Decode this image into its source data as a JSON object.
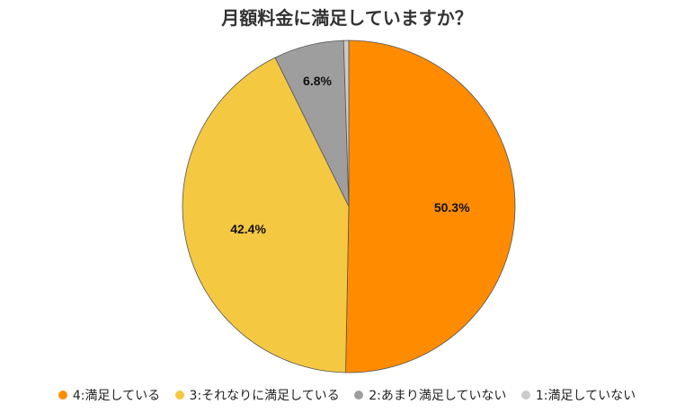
{
  "chart_data": {
    "type": "pie",
    "title": "月額料金に満足していますか？",
    "categories": [
      "4:満足している",
      "3:それなりに満足している",
      "2:あまり満足していない",
      "1:満足していない"
    ],
    "values": [
      50.3,
      42.4,
      6.8,
      0.5
    ],
    "data_labels": [
      "50.3%",
      "42.4%",
      "6.8%",
      ""
    ],
    "colors": [
      "#ff8c00",
      "#f5c842",
      "#9e9e9e",
      "#cccccc"
    ],
    "legend_position": "bottom",
    "start_angle": "12 o'clock, clockwise"
  },
  "legend": [
    {
      "label": "4:満足している",
      "color": "#ff8c00"
    },
    {
      "label": "3:それなりに満足している",
      "color": "#f5c842"
    },
    {
      "label": "2:あまり満足していない",
      "color": "#9e9e9e"
    },
    {
      "label": "1:満足していない",
      "color": "#cccccc"
    }
  ]
}
